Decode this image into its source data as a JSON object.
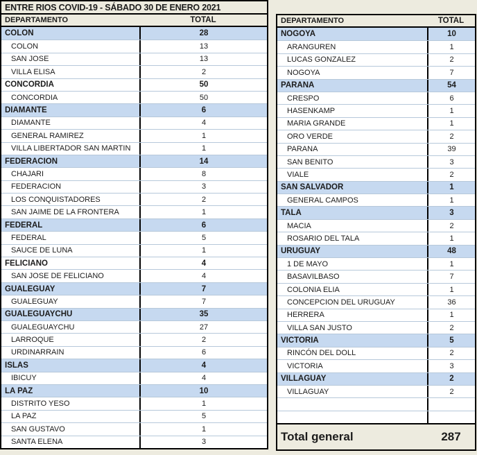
{
  "title": "ENTRE RIOS COVID-19  - SÁBADO 30 DE ENERO 2021",
  "colors": {
    "highlight": "#c6d9f0",
    "cream_background": "#edebdf",
    "border_black": "#000000",
    "row_divider": "#b6c8da"
  },
  "grand_total": "287",
  "left_table": {
    "headers": {
      "department": "DEPARTAMENTO",
      "total": "TOTAL"
    },
    "rows": [
      {
        "label": "COLON",
        "value": "28",
        "type": "group"
      },
      {
        "label": "COLON",
        "value": "13",
        "type": "item"
      },
      {
        "label": "SAN JOSE",
        "value": "13",
        "type": "item"
      },
      {
        "label": "VILLA ELISA",
        "value": "2",
        "type": "item"
      },
      {
        "label": "CONCORDIA",
        "value": "50",
        "type": "group-plain"
      },
      {
        "label": "CONCORDIA",
        "value": "50",
        "type": "item"
      },
      {
        "label": "DIAMANTE",
        "value": "6",
        "type": "group"
      },
      {
        "label": "DIAMANTE",
        "value": "4",
        "type": "item"
      },
      {
        "label": "GENERAL RAMIREZ",
        "value": "1",
        "type": "item"
      },
      {
        "label": "VILLA LIBERTADOR SAN MARTIN",
        "value": "1",
        "type": "item"
      },
      {
        "label": "FEDERACION",
        "value": "14",
        "type": "group"
      },
      {
        "label": "CHAJARI",
        "value": "8",
        "type": "item"
      },
      {
        "label": "FEDERACION",
        "value": "3",
        "type": "item"
      },
      {
        "label": "LOS CONQUISTADORES",
        "value": "2",
        "type": "item"
      },
      {
        "label": "SAN JAIME DE LA FRONTERA",
        "value": "1",
        "type": "item"
      },
      {
        "label": "FEDERAL",
        "value": "6",
        "type": "group"
      },
      {
        "label": "FEDERAL",
        "value": "5",
        "type": "item"
      },
      {
        "label": "SAUCE DE LUNA",
        "value": "1",
        "type": "item"
      },
      {
        "label": "FELICIANO",
        "value": "4",
        "type": "group-plain"
      },
      {
        "label": "SAN JOSE DE FELICIANO",
        "value": "4",
        "type": "item"
      },
      {
        "label": "GUALEGUAY",
        "value": "7",
        "type": "group"
      },
      {
        "label": "GUALEGUAY",
        "value": "7",
        "type": "item"
      },
      {
        "label": "GUALEGUAYCHU",
        "value": "35",
        "type": "group"
      },
      {
        "label": "GUALEGUAYCHU",
        "value": "27",
        "type": "item"
      },
      {
        "label": "LARROQUE",
        "value": "2",
        "type": "item"
      },
      {
        "label": "URDINARRAIN",
        "value": "6",
        "type": "item"
      },
      {
        "label": "ISLAS",
        "value": "4",
        "type": "group"
      },
      {
        "label": "IBICUY",
        "value": "4",
        "type": "item"
      },
      {
        "label": "LA PAZ",
        "value": "10",
        "type": "group"
      },
      {
        "label": "DISTRITO YESO",
        "value": "1",
        "type": "item"
      },
      {
        "label": "LA PAZ",
        "value": "5",
        "type": "item"
      },
      {
        "label": "SAN GUSTAVO",
        "value": "1",
        "type": "item"
      },
      {
        "label": "SANTA ELENA",
        "value": "3",
        "type": "item"
      }
    ]
  },
  "right_table": {
    "headers": {
      "department": "DEPARTAMENTO",
      "total": "TOTAL"
    },
    "rows": [
      {
        "label": "NOGOYA",
        "value": "10",
        "type": "group"
      },
      {
        "label": "ARANGUREN",
        "value": "1",
        "type": "item"
      },
      {
        "label": "LUCAS GONZALEZ",
        "value": "2",
        "type": "item"
      },
      {
        "label": "NOGOYA",
        "value": "7",
        "type": "item"
      },
      {
        "label": "PARANA",
        "value": "54",
        "type": "group"
      },
      {
        "label": "CRESPO",
        "value": "6",
        "type": "item"
      },
      {
        "label": "HASENKAMP",
        "value": "1",
        "type": "item"
      },
      {
        "label": "MARIA GRANDE",
        "value": "1",
        "type": "item"
      },
      {
        "label": "ORO VERDE",
        "value": "2",
        "type": "item"
      },
      {
        "label": "PARANA",
        "value": "39",
        "type": "item"
      },
      {
        "label": "SAN BENITO",
        "value": "3",
        "type": "item"
      },
      {
        "label": "VIALE",
        "value": "2",
        "type": "item"
      },
      {
        "label": "SAN SALVADOR",
        "value": "1",
        "type": "group"
      },
      {
        "label": "GENERAL CAMPOS",
        "value": "1",
        "type": "item"
      },
      {
        "label": "TALA",
        "value": "3",
        "type": "group"
      },
      {
        "label": "MACIA",
        "value": "2",
        "type": "item"
      },
      {
        "label": "ROSARIO DEL TALA",
        "value": "1",
        "type": "item"
      },
      {
        "label": "URUGUAY",
        "value": "48",
        "type": "group"
      },
      {
        "label": "1 DE MAYO",
        "value": "1",
        "type": "item"
      },
      {
        "label": "BASAVILBASO",
        "value": "7",
        "type": "item"
      },
      {
        "label": "COLONIA ELIA",
        "value": "1",
        "type": "item"
      },
      {
        "label": "CONCEPCION DEL URUGUAY",
        "value": "36",
        "type": "item"
      },
      {
        "label": "HERRERA",
        "value": "1",
        "type": "item"
      },
      {
        "label": "VILLA SAN JUSTO",
        "value": "2",
        "type": "item"
      },
      {
        "label": "VICTORIA",
        "value": "5",
        "type": "group"
      },
      {
        "label": "RINCÓN DEL DOLL",
        "value": "2",
        "type": "item"
      },
      {
        "label": "VICTORIA",
        "value": "3",
        "type": "item"
      },
      {
        "label": "VILLAGUAY",
        "value": "2",
        "type": "group"
      },
      {
        "label": "VILLAGUAY",
        "value": "2",
        "type": "item"
      },
      {
        "label": "",
        "value": "",
        "type": "empty"
      },
      {
        "label": "",
        "value": "",
        "type": "empty"
      }
    ],
    "footer": {
      "label": "Total general",
      "value": "287"
    }
  }
}
